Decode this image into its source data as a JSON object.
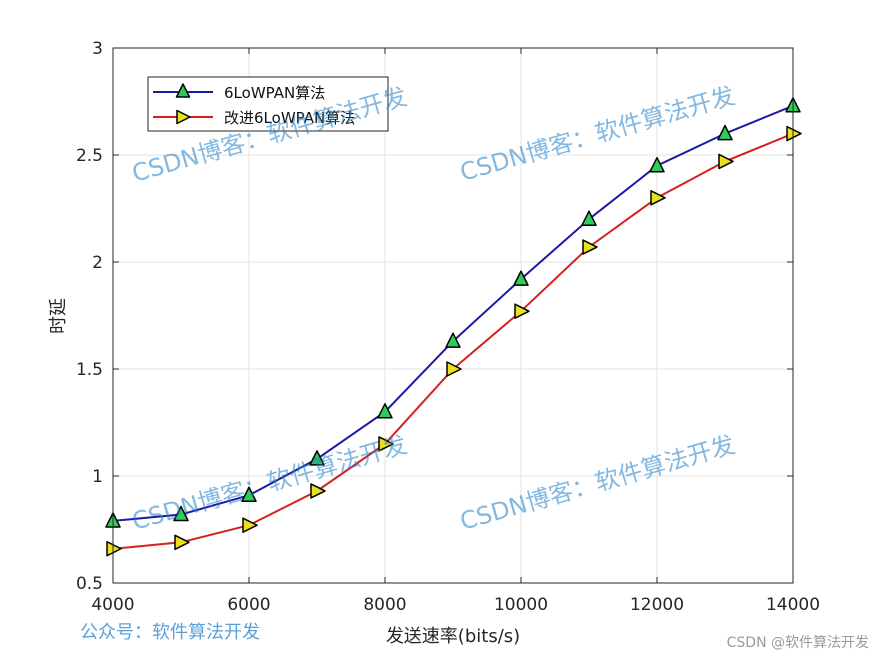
{
  "chart_data": {
    "type": "line",
    "xlabel": "发送速率(bits/s)",
    "ylabel": "时延",
    "xlim": [
      4000,
      14000
    ],
    "ylim": [
      0.5,
      3
    ],
    "xticks": [
      4000,
      6000,
      8000,
      10000,
      12000,
      14000
    ],
    "xtick_labels": [
      "4000",
      "6000",
      "8000",
      "10000",
      "12000",
      "14000"
    ],
    "yticks": [
      0.5,
      1,
      1.5,
      2,
      2.5,
      3
    ],
    "ytick_labels": [
      "0.5",
      "1",
      "1.5",
      "2",
      "2.5",
      "3"
    ],
    "grid": true,
    "legend_position": "top-left",
    "x": [
      4000,
      5000,
      6000,
      7000,
      8000,
      9000,
      10000,
      11000,
      12000,
      13000,
      14000
    ],
    "series": [
      {
        "name": "6LoWPAN算法",
        "values": [
          0.79,
          0.82,
          0.91,
          1.08,
          1.3,
          1.63,
          1.92,
          2.2,
          2.45,
          2.6,
          2.73
        ],
        "line_color": "#1a1aa6",
        "marker": "triangle-up",
        "marker_fill": "#2ecc5a"
      },
      {
        "name": "改进6LoWPAN算法",
        "values": [
          0.66,
          0.69,
          0.77,
          0.93,
          1.15,
          1.5,
          1.77,
          2.07,
          2.3,
          2.47,
          2.6
        ],
        "line_color": "#d42020",
        "marker": "triangle-right",
        "marker_fill": "#e8e020"
      }
    ]
  },
  "watermarks": {
    "blog": "CSDN博客：软件算法开发",
    "footer": "公众号：软件算法开发",
    "credit": "CSDN @软件算法开发"
  }
}
